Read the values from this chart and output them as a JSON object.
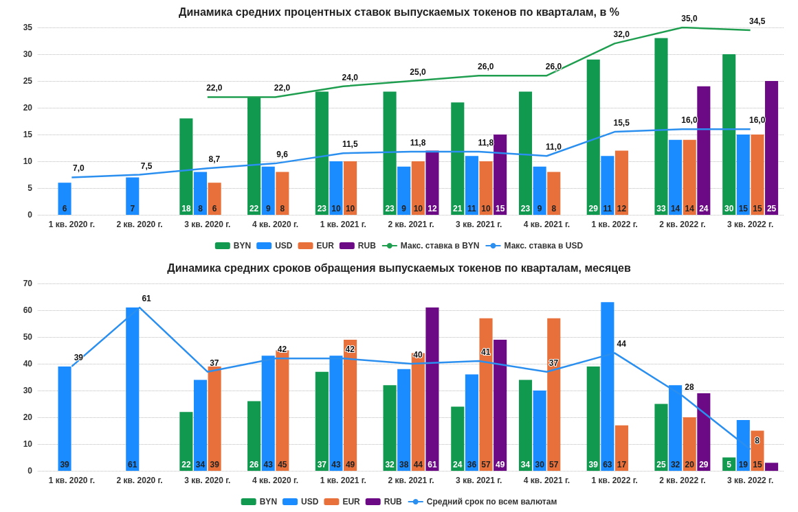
{
  "chart_data": [
    {
      "type": "bar",
      "title": "Динамика средних процентных ставок выпускаемых токенов по кварталам, в %",
      "categories": [
        "1 кв. 2020 г.",
        "2 кв. 2020 г.",
        "3 кв. 2020 г.",
        "4 кв. 2020 г.",
        "1 кв. 2021 г.",
        "2 кв. 2021 г.",
        "3 кв. 2021 г.",
        "4 кв. 2021 г.",
        "1 кв. 2022 г.",
        "2 кв. 2022 г.",
        "3 кв. 2022 г."
      ],
      "series": [
        {
          "name": "BYN",
          "color": "#10994f",
          "values": [
            null,
            null,
            18,
            22,
            23,
            23,
            21,
            23,
            29,
            33,
            30
          ]
        },
        {
          "name": "USD",
          "color": "#1a8cff",
          "values": [
            6,
            7,
            8,
            9,
            10,
            9,
            11,
            9,
            11,
            14,
            15
          ]
        },
        {
          "name": "EUR",
          "color": "#e8703a",
          "values": [
            null,
            null,
            6,
            8,
            10,
            10,
            10,
            8,
            12,
            14,
            15
          ]
        },
        {
          "name": "RUB",
          "color": "#6b0a84",
          "values": [
            null,
            null,
            null,
            null,
            null,
            12,
            15,
            null,
            null,
            24,
            25
          ]
        },
        {
          "name": "Макс. ставка в BYN",
          "type": "line",
          "color": "#1f9e50",
          "values": [
            null,
            null,
            22,
            22,
            24,
            25,
            26,
            26,
            32,
            35,
            34.5
          ],
          "value_labels": [
            null,
            null,
            "22,0",
            "22,0",
            "24,0",
            "25,0",
            "26,0",
            "26,0",
            "32,0",
            "35,0",
            "34,5"
          ]
        },
        {
          "name": "Макс. ставка в USD",
          "type": "line",
          "color": "#2b8fef",
          "values": [
            7,
            7.5,
            8.7,
            9.6,
            11.5,
            11.8,
            11.8,
            11,
            15.5,
            16,
            16
          ],
          "value_labels": [
            "7,0",
            "7,5",
            "8,7",
            "9,6",
            "11,5",
            "11,8",
            "11,8",
            "11,0",
            "15,5",
            "16,0",
            "16,0"
          ]
        }
      ],
      "ylim": [
        0,
        35
      ],
      "yticks": [
        0,
        5,
        10,
        15,
        20,
        25,
        30,
        35
      ],
      "grid": "y",
      "legend": "bottom",
      "data_labels": true,
      "marker": "none",
      "line_style": "solid"
    },
    {
      "type": "bar",
      "title": "Динамика средних сроков обращения выпускаемых токенов по кварталам, месяцев",
      "categories": [
        "1 кв. 2020 г.",
        "2 кв. 2020 г.",
        "3 кв. 2020 г.",
        "4 кв. 2020 г.",
        "1 кв. 2021 г.",
        "2 кв. 2021 г.",
        "3 кв. 2021 г.",
        "4 кв. 2021 г.",
        "1 кв. 2022 г.",
        "2 кв. 2022 г.",
        "3 кв. 2022 г."
      ],
      "series": [
        {
          "name": "BYN",
          "color": "#10994f",
          "values": [
            null,
            null,
            22,
            26,
            37,
            32,
            24,
            34,
            39,
            25,
            5
          ]
        },
        {
          "name": "USD",
          "color": "#1a8cff",
          "values": [
            39,
            61,
            34,
            43,
            43,
            38,
            36,
            30,
            63,
            32,
            19
          ]
        },
        {
          "name": "EUR",
          "color": "#e8703a",
          "values": [
            null,
            null,
            39,
            45,
            49,
            44,
            57,
            57,
            17,
            20,
            15
          ]
        },
        {
          "name": "RUB",
          "color": "#6b0a84",
          "values": [
            null,
            null,
            null,
            null,
            null,
            61,
            49,
            null,
            null,
            29,
            3
          ],
          "value_labels": [
            null,
            null,
            null,
            null,
            null,
            "61",
            "49",
            null,
            null,
            "29",
            null
          ]
        },
        {
          "name": "Средний срок по всем валютам",
          "type": "line",
          "color": "#2b8fef",
          "values": [
            39,
            61,
            37,
            42,
            42,
            40,
            41,
            37,
            44,
            28,
            8
          ]
        }
      ],
      "ylim": [
        0,
        70
      ],
      "yticks": [
        0,
        10,
        20,
        30,
        40,
        50,
        60,
        70
      ],
      "grid": "y",
      "legend": "bottom",
      "data_labels": true,
      "marker": "none",
      "line_style": "solid"
    }
  ]
}
